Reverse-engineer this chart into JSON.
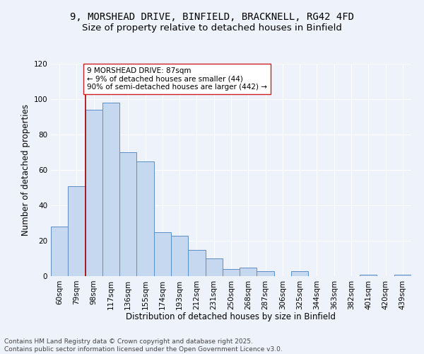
{
  "title1": "9, MORSHEAD DRIVE, BINFIELD, BRACKNELL, RG42 4FD",
  "title2": "Size of property relative to detached houses in Binfield",
  "xlabel": "Distribution of detached houses by size in Binfield",
  "ylabel": "Number of detached properties",
  "categories": [
    "60sqm",
    "79sqm",
    "98sqm",
    "117sqm",
    "136sqm",
    "155sqm",
    "174sqm",
    "193sqm",
    "212sqm",
    "231sqm",
    "250sqm",
    "268sqm",
    "287sqm",
    "306sqm",
    "325sqm",
    "344sqm",
    "363sqm",
    "382sqm",
    "401sqm",
    "420sqm",
    "439sqm"
  ],
  "values": [
    28,
    51,
    94,
    98,
    70,
    65,
    25,
    23,
    15,
    10,
    4,
    5,
    3,
    0,
    3,
    0,
    0,
    0,
    1,
    0,
    1
  ],
  "bar_color": "#c5d8f0",
  "bar_edge_color": "#5b8fc7",
  "vline_x_bar": 1,
  "vline_color": "#aa0000",
  "annotation_text": "9 MORSHEAD DRIVE: 87sqm\n← 9% of detached houses are smaller (44)\n90% of semi-detached houses are larger (442) →",
  "annotation_box_color": "#ffffff",
  "annotation_box_edge": "#cc2222",
  "ylim": [
    0,
    120
  ],
  "yticks": [
    0,
    20,
    40,
    60,
    80,
    100,
    120
  ],
  "background_color": "#eef2fa",
  "grid_color": "#ffffff",
  "footer_text": "Contains HM Land Registry data © Crown copyright and database right 2025.\nContains public sector information licensed under the Open Government Licence v3.0.",
  "title_fontsize": 10,
  "subtitle_fontsize": 9.5,
  "axis_fontsize": 8.5,
  "tick_fontsize": 7.5,
  "footer_fontsize": 6.5,
  "annotation_fontsize": 7.5
}
